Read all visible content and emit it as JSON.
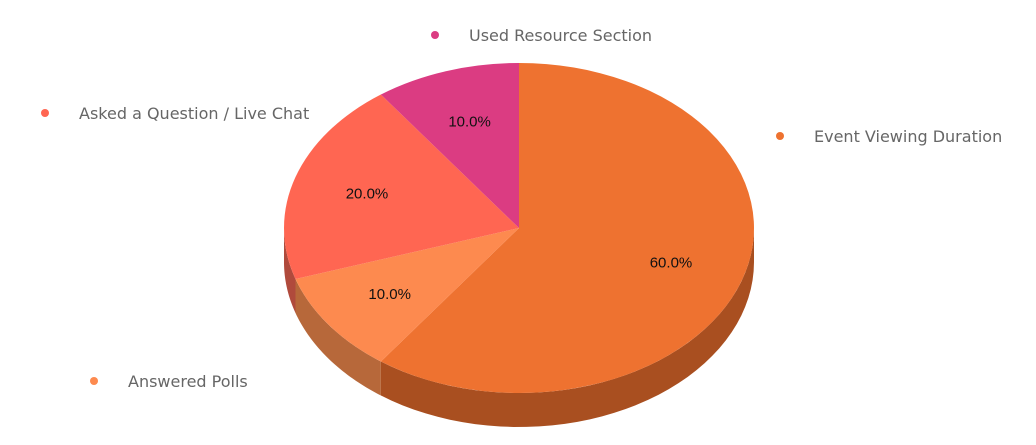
{
  "chart_data": {
    "type": "pie",
    "style": "3d",
    "title": "",
    "slices": [
      {
        "label": "Event Viewing Duration",
        "value": 60.0,
        "display": "60.0%",
        "color": "#EE7230",
        "side_color": "#A94F20"
      },
      {
        "label": "Answered Polls",
        "value": 10.0,
        "display": "10.0%",
        "color": "#FD8A4F",
        "side_color": "#B7683A"
      },
      {
        "label": "Asked a Question / Live Chat",
        "value": 20.0,
        "display": "20.0%",
        "color": "#FF6652",
        "side_color": "#B04A3C"
      },
      {
        "label": "Used Resource Section",
        "value": 10.0,
        "display": "10.0%",
        "color": "#DB3C82",
        "side_color": "#9A2A5C"
      }
    ],
    "legend": "around-pie"
  }
}
